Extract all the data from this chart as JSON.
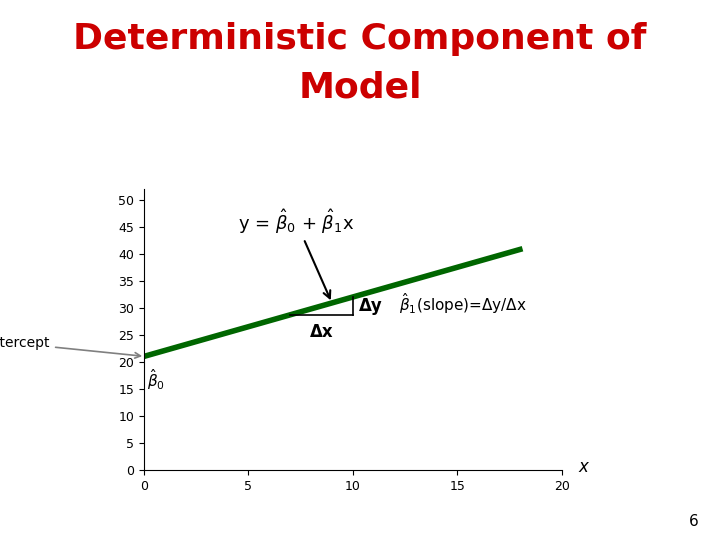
{
  "title_line1": "Deterministic Component of",
  "title_line2": "Model",
  "title_color": "#CC0000",
  "title_fontsize": 26,
  "bg_color": "#FFFFFF",
  "line_color": "#006600",
  "line_linewidth": 4,
  "x_start": 0,
  "x_end": 18,
  "y_intercept": 21,
  "slope": 1.1,
  "xlim": [
    0,
    20
  ],
  "ylim": [
    0,
    52
  ],
  "xticks": [
    0,
    5,
    10,
    15,
    20
  ],
  "yticks": [
    0,
    5,
    10,
    15,
    20,
    25,
    30,
    35,
    40,
    45,
    50
  ],
  "xlabel": "x",
  "annotation_dy": "Δy",
  "annotation_dx": "Δx",
  "y_intercept_label": "y-intercept",
  "page_number": "6",
  "delta_x_start": 7,
  "delta_x_end": 10,
  "rect_color": "#000000",
  "text_color": "#000000"
}
